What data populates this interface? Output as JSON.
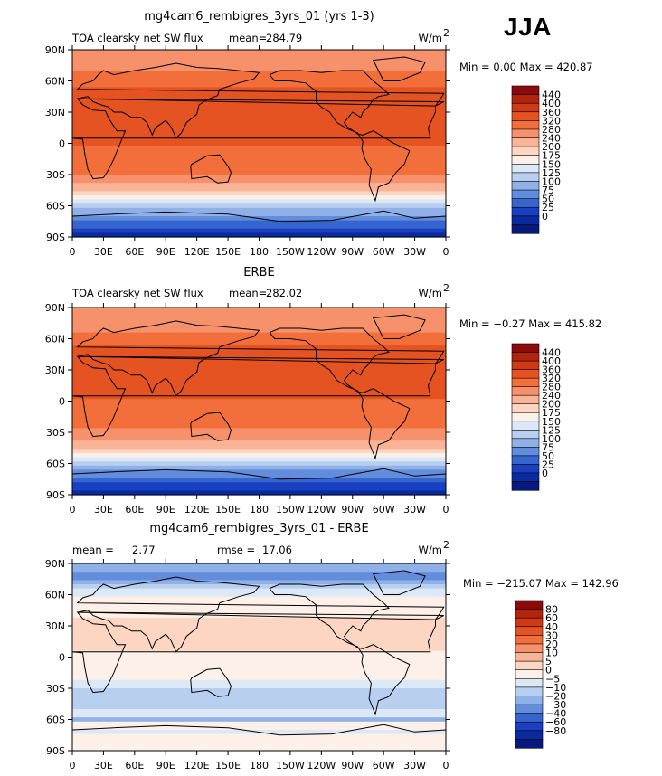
{
  "season": "JJA",
  "chart_data": [
    {
      "type": "heatmap",
      "title": "mg4cam6_rembigres_3yrs_01 (yrs 1-3)",
      "left_label": "TOA clearsky net SW flux",
      "mean_label": "mean=",
      "mean_value": "284.79",
      "units_base": "W/m",
      "units_exp": "2",
      "minmax": "Min =    0.00 Max = 420.87",
      "min": 0.0,
      "max": 420.87,
      "ylim": [
        -90,
        90
      ],
      "xlim": [
        0,
        360
      ],
      "y_ticks": [
        "90N",
        "60N",
        "30N",
        "0",
        "30S",
        "60S",
        "90S"
      ],
      "x_ticks": [
        "0",
        "30E",
        "60E",
        "90E",
        "120E",
        "150E",
        "180",
        "150W",
        "120W",
        "90W",
        "60W",
        "30W",
        "0"
      ],
      "colorbar_labels": [
        "440",
        "400",
        "360",
        "320",
        "280",
        "240",
        "200",
        "175",
        "150",
        "125",
        "100",
        "75",
        "50",
        "25",
        "0"
      ],
      "colorbar_colors": [
        "#8c0a0a",
        "#b3240e",
        "#cf3a15",
        "#e55322",
        "#f26f3c",
        "#f6916b",
        "#f9b497",
        "#fcd6c2",
        "#fdf0e8",
        "#dde8f7",
        "#b8cff0",
        "#8fb1e8",
        "#628ddc",
        "#3665cf",
        "#1840c0",
        "#0a2aa0",
        "#061a7e"
      ],
      "lat_profile": [
        [
          -90,
          15
        ],
        [
          -80,
          55
        ],
        [
          -70,
          95
        ],
        [
          -62,
          130
        ],
        [
          -55,
          175
        ],
        [
          -48,
          225
        ],
        [
          -42,
          270
        ],
        [
          -36,
          300
        ],
        [
          -30,
          315
        ],
        [
          -20,
          345
        ],
        [
          -10,
          355
        ],
        [
          0,
          362
        ],
        [
          10,
          372
        ],
        [
          20,
          388
        ],
        [
          30,
          400
        ],
        [
          40,
          395
        ],
        [
          50,
          380
        ],
        [
          58,
          350
        ],
        [
          65,
          330
        ],
        [
          72,
          310
        ],
        [
          80,
          290
        ],
        [
          90,
          285
        ]
      ]
    },
    {
      "type": "heatmap",
      "title": "ERBE",
      "left_label": "TOA clearsky net SW flux",
      "mean_label": "mean=",
      "mean_value": "282.02",
      "units_base": "W/m",
      "units_exp": "2",
      "minmax": "Min =  −0.27 Max = 415.82",
      "min": -0.27,
      "max": 415.82,
      "ylim": [
        -90,
        90
      ],
      "xlim": [
        0,
        360
      ],
      "y_ticks": [
        "90N",
        "60N",
        "30N",
        "0",
        "30S",
        "60S",
        "90S"
      ],
      "x_ticks": [
        "0",
        "30E",
        "60E",
        "90E",
        "120E",
        "150E",
        "180",
        "150W",
        "120W",
        "90W",
        "60W",
        "30W",
        "0"
      ],
      "colorbar_labels": [
        "440",
        "400",
        "360",
        "320",
        "280",
        "240",
        "200",
        "175",
        "150",
        "125",
        "100",
        "75",
        "50",
        "25",
        "0"
      ],
      "colorbar_colors": [
        "#8c0a0a",
        "#b3240e",
        "#cf3a15",
        "#e55322",
        "#f26f3c",
        "#f6916b",
        "#f9b497",
        "#fcd6c2",
        "#fdf0e8",
        "#dde8f7",
        "#b8cff0",
        "#8fb1e8",
        "#628ddc",
        "#3665cf",
        "#1840c0",
        "#0a2aa0",
        "#061a7e"
      ],
      "lat_profile": [
        [
          -90,
          10
        ],
        [
          -80,
          45
        ],
        [
          -70,
          90
        ],
        [
          -62,
          125
        ],
        [
          -55,
          170
        ],
        [
          -48,
          220
        ],
        [
          -42,
          265
        ],
        [
          -36,
          298
        ],
        [
          -30,
          312
        ],
        [
          -20,
          342
        ],
        [
          -10,
          352
        ],
        [
          0,
          360
        ],
        [
          10,
          370
        ],
        [
          20,
          386
        ],
        [
          30,
          398
        ],
        [
          40,
          392
        ],
        [
          50,
          378
        ],
        [
          58,
          348
        ],
        [
          65,
          328
        ],
        [
          72,
          305
        ],
        [
          80,
          285
        ],
        [
          90,
          280
        ]
      ]
    },
    {
      "type": "heatmap",
      "title": "mg4cam6_rembigres_3yrs_01 - ERBE",
      "left_label": "mean =",
      "left_value": "2.77",
      "mean_label": "rmse =",
      "mean_value": "17.06",
      "units_base": "W/m",
      "units_exp": "2",
      "minmax": "Min = −215.07 Max = 142.96",
      "min": -215.07,
      "max": 142.96,
      "ylim": [
        -90,
        90
      ],
      "xlim": [
        0,
        360
      ],
      "y_ticks": [
        "90N",
        "60N",
        "30N",
        "0",
        "30S",
        "60S",
        "90S"
      ],
      "x_ticks": [
        "0",
        "30E",
        "60E",
        "90E",
        "120E",
        "150E",
        "180",
        "150W",
        "120W",
        "90W",
        "60W",
        "30W",
        "0"
      ],
      "colorbar_labels": [
        "80",
        "60",
        "40",
        "30",
        "20",
        "10",
        "5",
        "0",
        "−5",
        "−10",
        "−20",
        "−30",
        "−40",
        "−60",
        "−80"
      ],
      "colorbar_colors": [
        "#8c0a0a",
        "#b3240e",
        "#cf3a15",
        "#e55322",
        "#f26f3c",
        "#f6916b",
        "#f9b497",
        "#fcd6c2",
        "#fdf0e8",
        "#dde8f7",
        "#b8cff0",
        "#8fb1e8",
        "#628ddc",
        "#3665cf",
        "#1840c0",
        "#0a2aa0",
        "#061a7e"
      ],
      "lat_profile": [
        [
          -90,
          0
        ],
        [
          -80,
          5
        ],
        [
          -72,
          -2
        ],
        [
          -65,
          5
        ],
        [
          -60,
          -12
        ],
        [
          -55,
          -3
        ],
        [
          -45,
          -8
        ],
        [
          -38,
          -10
        ],
        [
          -30,
          -4
        ],
        [
          -20,
          2
        ],
        [
          -10,
          3
        ],
        [
          0,
          4
        ],
        [
          10,
          6
        ],
        [
          20,
          6
        ],
        [
          30,
          7
        ],
        [
          40,
          5
        ],
        [
          50,
          4
        ],
        [
          58,
          2
        ],
        [
          65,
          -5
        ],
        [
          72,
          -15
        ],
        [
          80,
          -25
        ],
        [
          90,
          -10
        ]
      ]
    }
  ]
}
